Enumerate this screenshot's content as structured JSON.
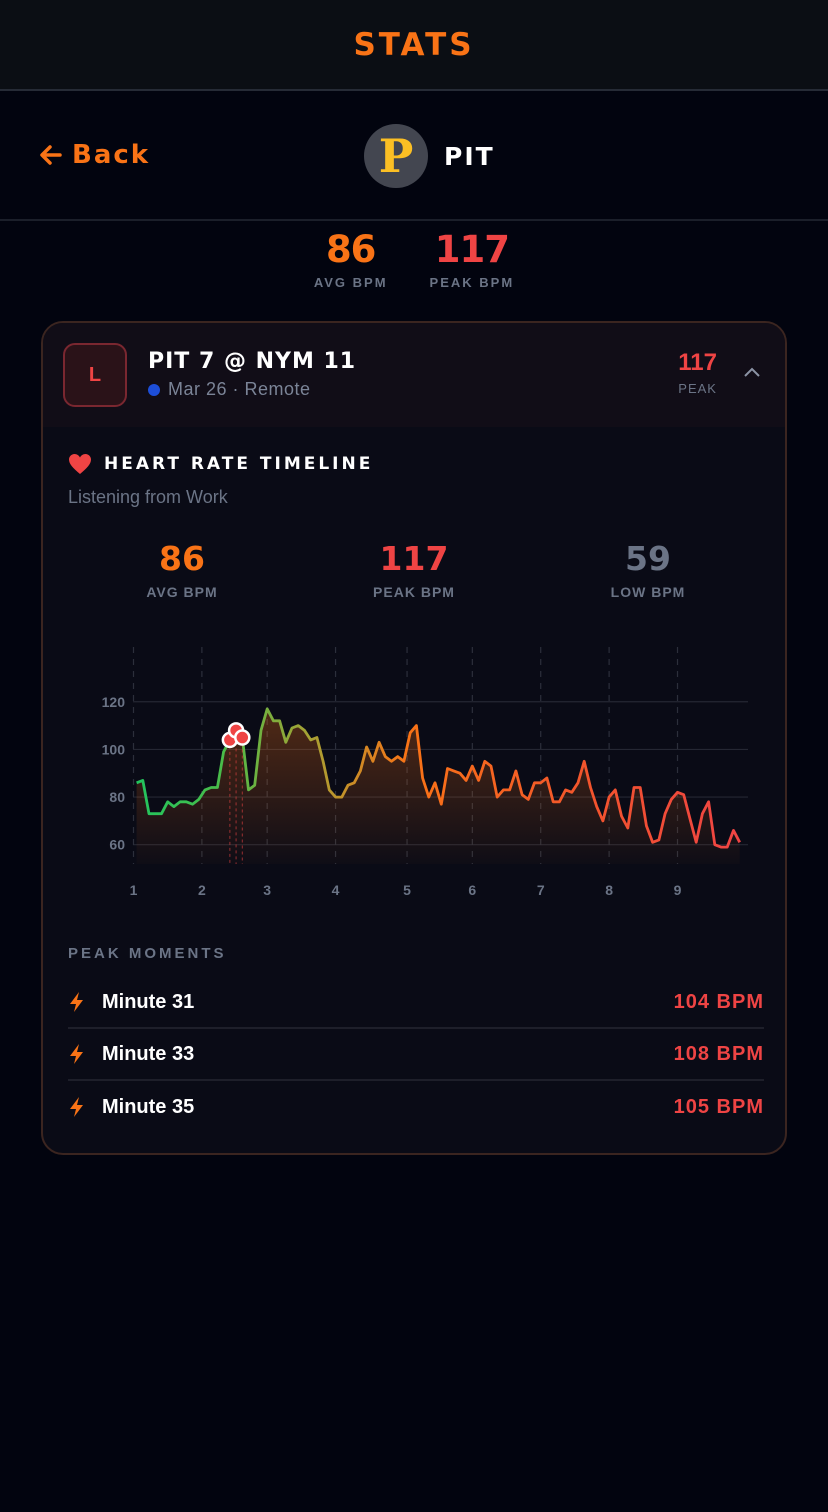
{
  "header": {
    "title": "STATS"
  },
  "nav": {
    "back_label": "Back",
    "team_abbr": "PIT",
    "logo_letter": "P"
  },
  "summary": [
    {
      "value": "86",
      "label": "AVG BPM",
      "color": "#f97316"
    },
    {
      "value": "117",
      "label": "PEAK BPM",
      "color": "#ef4444"
    }
  ],
  "game": {
    "result": "L",
    "title": "PIT 7 @ NYM 11",
    "date_location": "Mar 26 · Remote",
    "peak_value": "117",
    "peak_label": "PEAK",
    "expanded": true
  },
  "timeline": {
    "title": "HEART RATE TIMELINE",
    "subtitle": "Listening from Work",
    "stats": [
      {
        "value": "86",
        "label": "AVG BPM",
        "color": "#f97316"
      },
      {
        "value": "117",
        "label": "PEAK BPM",
        "color": "#ef4444"
      },
      {
        "value": "59",
        "label": "LOW BPM",
        "color": "#6b7486"
      }
    ]
  },
  "chart_data": {
    "type": "line",
    "x_unit": "minute",
    "xlim": [
      0,
      198
    ],
    "ylim": [
      54,
      143
    ],
    "y_ticks": [
      60,
      80,
      100,
      120
    ],
    "x_ticks": [
      {
        "label": "1",
        "minute": 0
      },
      {
        "label": "2",
        "minute": 22
      },
      {
        "label": "3",
        "minute": 43
      },
      {
        "label": "4",
        "minute": 65
      },
      {
        "label": "5",
        "minute": 88
      },
      {
        "label": "6",
        "minute": 109
      },
      {
        "label": "7",
        "minute": 131
      },
      {
        "label": "8",
        "minute": 153
      },
      {
        "label": "9",
        "minute": 175
      }
    ],
    "grid": true,
    "line_colors": [
      "#22c55e",
      "#a3a335",
      "#f97316",
      "#f2542d",
      "#ef4444"
    ],
    "points": [
      [
        1,
        86
      ],
      [
        3,
        87
      ],
      [
        5,
        73
      ],
      [
        9,
        73
      ],
      [
        11,
        78
      ],
      [
        13,
        76
      ],
      [
        15,
        78
      ],
      [
        17,
        78
      ],
      [
        19,
        77
      ],
      [
        21,
        79
      ],
      [
        23,
        83
      ],
      [
        25,
        84
      ],
      [
        27,
        84
      ],
      [
        29,
        99
      ],
      [
        31,
        104
      ],
      [
        33,
        108
      ],
      [
        35,
        105
      ],
      [
        37,
        83
      ],
      [
        39,
        85
      ],
      [
        41,
        108
      ],
      [
        43,
        117
      ],
      [
        45,
        112
      ],
      [
        47,
        112
      ],
      [
        49,
        103
      ],
      [
        51,
        109
      ],
      [
        53,
        110
      ],
      [
        55,
        108
      ],
      [
        57,
        104
      ],
      [
        59,
        105
      ],
      [
        61,
        95
      ],
      [
        63,
        83
      ],
      [
        65,
        80
      ],
      [
        67,
        80
      ],
      [
        69,
        85
      ],
      [
        71,
        86
      ],
      [
        73,
        91
      ],
      [
        75,
        101
      ],
      [
        77,
        95
      ],
      [
        79,
        103
      ],
      [
        81,
        97
      ],
      [
        83,
        95
      ],
      [
        85,
        97
      ],
      [
        87,
        95
      ],
      [
        89,
        107
      ],
      [
        91,
        110
      ],
      [
        93,
        88
      ],
      [
        95,
        80
      ],
      [
        97,
        86
      ],
      [
        99,
        77
      ],
      [
        101,
        92
      ],
      [
        103,
        91
      ],
      [
        105,
        90
      ],
      [
        107,
        87
      ],
      [
        109,
        93
      ],
      [
        111,
        87
      ],
      [
        113,
        95
      ],
      [
        115,
        93
      ],
      [
        117,
        80
      ],
      [
        119,
        83
      ],
      [
        121,
        83
      ],
      [
        123,
        91
      ],
      [
        125,
        81
      ],
      [
        127,
        79
      ],
      [
        129,
        86
      ],
      [
        131,
        86
      ],
      [
        133,
        88
      ],
      [
        135,
        78
      ],
      [
        137,
        78
      ],
      [
        139,
        83
      ],
      [
        141,
        82
      ],
      [
        143,
        86
      ],
      [
        145,
        95
      ],
      [
        147,
        84
      ],
      [
        149,
        76
      ],
      [
        151,
        70
      ],
      [
        153,
        80
      ],
      [
        155,
        83
      ],
      [
        157,
        72
      ],
      [
        159,
        67
      ],
      [
        161,
        84
      ],
      [
        163,
        84
      ],
      [
        165,
        68
      ],
      [
        167,
        61
      ],
      [
        169,
        62
      ],
      [
        171,
        73
      ],
      [
        173,
        79
      ],
      [
        175,
        82
      ],
      [
        177,
        81
      ],
      [
        179,
        71
      ],
      [
        181,
        61
      ],
      [
        183,
        73
      ],
      [
        185,
        78
      ],
      [
        187,
        60
      ],
      [
        189,
        59
      ],
      [
        191,
        59
      ],
      [
        193,
        66
      ],
      [
        195,
        61
      ]
    ],
    "peaks": [
      [
        31,
        104
      ],
      [
        33,
        108
      ],
      [
        35,
        105
      ]
    ]
  },
  "peak_moments": {
    "title": "PEAK MOMENTS",
    "items": [
      {
        "label": "Minute 31",
        "value": "104 BPM"
      },
      {
        "label": "Minute 33",
        "value": "108 BPM"
      },
      {
        "label": "Minute 35",
        "value": "105 BPM"
      }
    ]
  }
}
